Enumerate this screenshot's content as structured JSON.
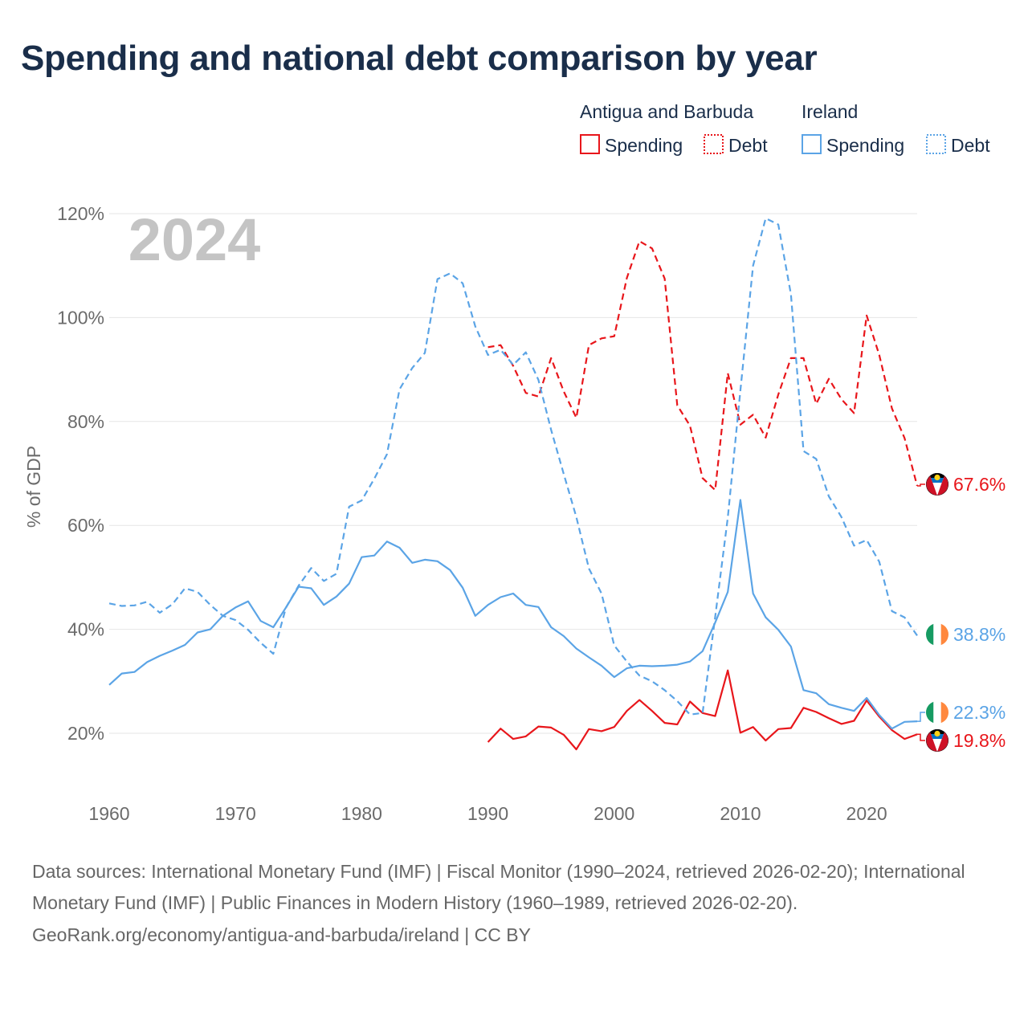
{
  "title": "Spending and national debt comparison by year",
  "source_lines": [
    "Data sources: International Monetary Fund (IMF) | Fiscal Monitor (1990–2024, retrieved 2026-02-20); International Monetary Fund (IMF) | Public Finances in Modern History (1960–1989, retrieved 2026-02-20).",
    "GeoRank.org/economy/antigua-and-barbuda/ireland | CC BY"
  ],
  "colors": {
    "antigua": "#e8161b",
    "ireland": "#5ba4e6",
    "title": "#1a2e4a",
    "axis_text": "#6b6b6b",
    "grid": "#e6e6e6",
    "year_watermark": "#c4c4c4"
  },
  "chart_data": {
    "type": "line",
    "title": "Spending and national debt comparison by year",
    "watermark_year": "2024",
    "xlabel": "",
    "ylabel": "% of GDP",
    "xlim": [
      1960,
      2024
    ],
    "ylim": [
      10,
      120
    ],
    "x_ticks": [
      1960,
      1970,
      1980,
      1990,
      2000,
      2010,
      2020
    ],
    "y_ticks": [
      20,
      40,
      60,
      80,
      100,
      120
    ],
    "y_tick_labels": [
      "20%",
      "40%",
      "60%",
      "80%",
      "100%",
      "120%"
    ],
    "grid": true,
    "legend": {
      "placement": "top-right",
      "groups": [
        {
          "country": "Antigua and Barbuda",
          "items": [
            "Spending",
            "Debt"
          ]
        },
        {
          "country": "Ireland",
          "items": [
            "Spending",
            "Debt"
          ]
        }
      ]
    },
    "series": [
      {
        "name": "Antigua and Barbuda Debt",
        "country": "antigua",
        "style": "dashed",
        "end_label": "67.6%",
        "x": [
          1990,
          1991,
          1992,
          1993,
          1994,
          1995,
          1996,
          1997,
          1998,
          1999,
          2000,
          2001,
          2002,
          2003,
          2004,
          2005,
          2006,
          2007,
          2008,
          2009,
          2010,
          2011,
          2012,
          2013,
          2014,
          2015,
          2016,
          2017,
          2018,
          2019,
          2020,
          2021,
          2022,
          2023,
          2024
        ],
        "values": [
          94.3,
          94.7,
          90.7,
          85.5,
          84.8,
          92.2,
          85.8,
          80.7,
          94.7,
          96.0,
          96.4,
          107.6,
          114.7,
          113.3,
          107.5,
          83.1,
          79.2,
          69.1,
          66.8,
          89.3,
          79.4,
          81.3,
          76.9,
          85.2,
          92.2,
          92.2,
          83.4,
          88.2,
          84.3,
          81.6,
          100.4,
          92.8,
          82.5,
          76.8,
          67.6
        ]
      },
      {
        "name": "Antigua and Barbuda Spending",
        "country": "antigua",
        "style": "solid",
        "end_label": "19.8%",
        "x": [
          1990,
          1991,
          1992,
          1993,
          1994,
          1995,
          1996,
          1997,
          1998,
          1999,
          2000,
          2001,
          2002,
          2003,
          2004,
          2005,
          2006,
          2007,
          2008,
          2009,
          2010,
          2011,
          2012,
          2013,
          2014,
          2015,
          2016,
          2017,
          2018,
          2019,
          2020,
          2021,
          2022,
          2023,
          2024
        ],
        "values": [
          18.3,
          20.9,
          18.9,
          19.4,
          21.3,
          21.1,
          19.7,
          16.9,
          20.8,
          20.4,
          21.2,
          24.3,
          26.4,
          24.3,
          22.0,
          21.7,
          26.1,
          23.9,
          23.3,
          32.1,
          20.1,
          21.2,
          18.6,
          20.8,
          21.0,
          24.9,
          24.1,
          22.9,
          21.8,
          22.4,
          26.3,
          23.2,
          20.6,
          18.9,
          19.8
        ]
      },
      {
        "name": "Ireland Debt",
        "country": "ireland",
        "style": "dashed",
        "end_label": "38.8%",
        "x": [
          1960,
          1961,
          1962,
          1963,
          1964,
          1965,
          1966,
          1967,
          1968,
          1969,
          1970,
          1971,
          1972,
          1973,
          1974,
          1975,
          1976,
          1977,
          1978,
          1979,
          1980,
          1981,
          1982,
          1983,
          1984,
          1985,
          1986,
          1987,
          1988,
          1989,
          1990,
          1991,
          1992,
          1993,
          1994,
          1995,
          1996,
          1997,
          1998,
          1999,
          2000,
          2001,
          2002,
          2003,
          2004,
          2005,
          2006,
          2007,
          2008,
          2009,
          2010,
          2011,
          2012,
          2013,
          2014,
          2015,
          2016,
          2017,
          2018,
          2019,
          2020,
          2021,
          2022,
          2023,
          2024
        ],
        "values": [
          45.0,
          44.5,
          44.6,
          45.3,
          43.2,
          44.8,
          47.9,
          47.2,
          44.7,
          42.6,
          41.8,
          39.9,
          37.4,
          35.3,
          44.2,
          48.4,
          51.8,
          49.3,
          50.7,
          63.6,
          64.8,
          69.0,
          73.7,
          86.2,
          90.3,
          93.2,
          107.4,
          108.5,
          106.6,
          98.3,
          92.8,
          93.8,
          90.9,
          93.3,
          88.0,
          78.4,
          69.9,
          61.6,
          51.7,
          46.9,
          36.9,
          33.8,
          31.1,
          30.0,
          28.3,
          26.2,
          23.6,
          23.9,
          42.4,
          61.5,
          86.0,
          110.0,
          119.1,
          117.9,
          104.5,
          74.3,
          72.8,
          65.6,
          61.6,
          56.1,
          57.2,
          53.0,
          43.5,
          42.3,
          38.8
        ]
      },
      {
        "name": "Ireland Spending",
        "country": "ireland",
        "style": "solid",
        "end_label": "22.3%",
        "x": [
          1960,
          1961,
          1962,
          1963,
          1964,
          1965,
          1966,
          1967,
          1968,
          1969,
          1970,
          1971,
          1972,
          1973,
          1974,
          1975,
          1976,
          1977,
          1978,
          1979,
          1980,
          1981,
          1982,
          1983,
          1984,
          1985,
          1986,
          1987,
          1988,
          1989,
          1990,
          1991,
          1992,
          1993,
          1994,
          1995,
          1996,
          1997,
          1998,
          1999,
          2000,
          2001,
          2002,
          2003,
          2004,
          2005,
          2006,
          2007,
          2008,
          2009,
          2010,
          2011,
          2012,
          2013,
          2014,
          2015,
          2016,
          2017,
          2018,
          2019,
          2020,
          2021,
          2022,
          2023,
          2024
        ],
        "values": [
          29.3,
          31.5,
          31.8,
          33.7,
          34.9,
          35.9,
          37.0,
          39.4,
          40.0,
          42.6,
          44.2,
          45.4,
          41.6,
          40.4,
          44.2,
          48.2,
          47.9,
          44.7,
          46.3,
          48.8,
          53.9,
          54.2,
          56.9,
          55.7,
          52.8,
          53.4,
          53.1,
          51.4,
          48.0,
          42.6,
          44.7,
          46.2,
          46.9,
          44.7,
          44.3,
          40.4,
          38.7,
          36.3,
          34.6,
          33.0,
          30.8,
          32.5,
          33.0,
          32.9,
          33.0,
          33.2,
          33.8,
          35.8,
          41.3,
          47.2,
          64.9,
          46.9,
          42.3,
          39.9,
          36.7,
          28.3,
          27.7,
          25.6,
          24.9,
          24.3,
          26.8,
          23.5,
          20.9,
          22.2,
          22.3
        ]
      }
    ]
  }
}
